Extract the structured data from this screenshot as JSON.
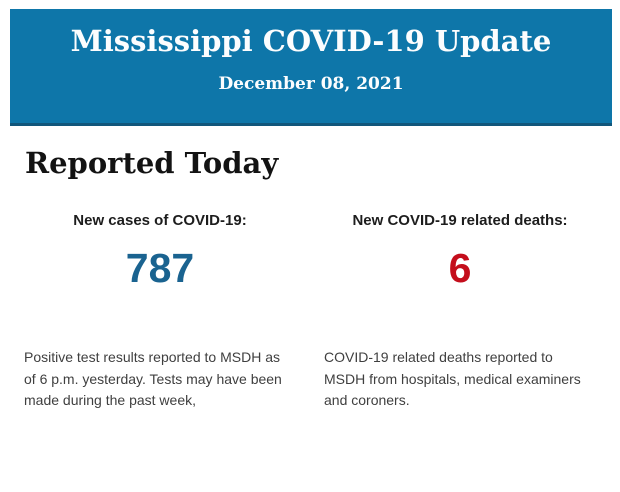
{
  "header": {
    "title": "Mississippi COVID-19 Update",
    "date": "December 08, 2021",
    "background_color": "#0e76a9",
    "text_color": "#ffffff"
  },
  "section": {
    "heading": "Reported Today"
  },
  "stats": [
    {
      "id": "new-cases",
      "label": "New cases of COVID-19:",
      "value": "787",
      "value_color": "#1a6390",
      "description_lines": [
        "Positive test results reported to MSDH as",
        "of 6 p.m. yesterday. Tests may have been",
        "made during the past week,"
      ]
    },
    {
      "id": "new-deaths",
      "label": "New COVID-19 related deaths:",
      "value": "6",
      "value_color": "#c40e1c",
      "description_lines": [
        "COVID-19 related deaths reported to",
        "MSDH from hospitals, medical examiners",
        "and coroners."
      ]
    }
  ]
}
